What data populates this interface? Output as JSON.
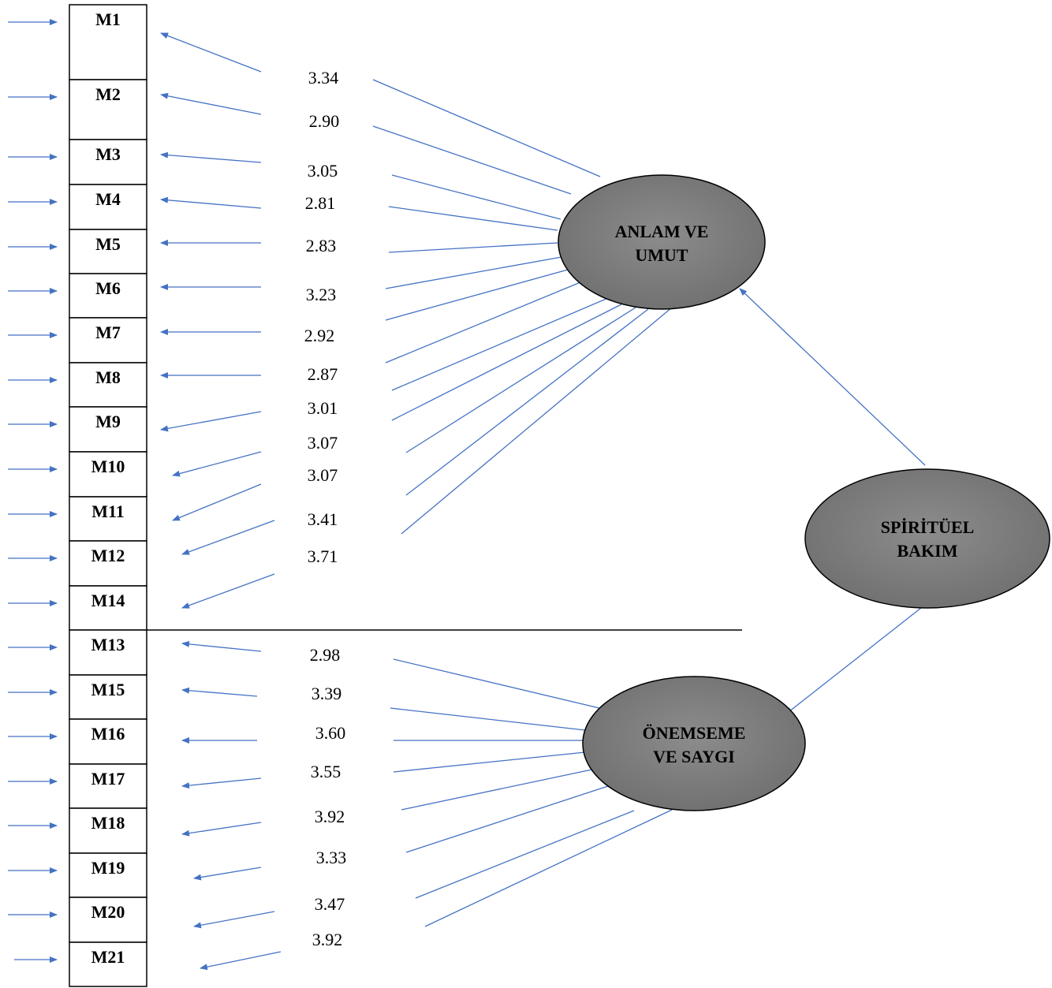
{
  "diagram": {
    "items": [
      "M1",
      "M2",
      "M3",
      "M4",
      "M5",
      "M6",
      "M7",
      "M8",
      "M9",
      "M10",
      "M11",
      "M12",
      "M14",
      "M13",
      "M15",
      "M16",
      "M17",
      "M18",
      "M19",
      "M20",
      "M21"
    ],
    "coefficients": [
      "3.34",
      "2.90",
      "3.05",
      "2.81",
      "2.83",
      "3.23",
      "2.92",
      "2.87",
      "3.01",
      "3.07",
      "3.07",
      "3.41",
      "3.71",
      "2.98",
      "3.39",
      "3.60",
      "3.55",
      "3.92",
      "3.33",
      "3.47",
      "3.92"
    ],
    "factor1": {
      "line1": "ANLAM VE",
      "line2": "UMUT"
    },
    "factor2": {
      "line1": "ÖNEMSEME",
      "line2": "VE SAYGI"
    },
    "second_order": {
      "line1": "SPİRİTÜEL",
      "line2": "BAKIM"
    },
    "colors": {
      "arrow": "#4472c4",
      "ellipse_fill": "#7f7f7f",
      "box_border": "#000000"
    }
  }
}
